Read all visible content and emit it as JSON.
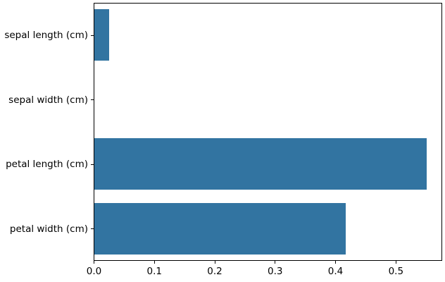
{
  "figure": {
    "background": "#ffffff"
  },
  "chart_data": {
    "type": "bar",
    "orientation": "horizontal",
    "title": "",
    "xlabel": "",
    "ylabel": "",
    "categories": [
      "sepal length (cm)",
      "sepal width (cm)",
      "petal length (cm)",
      "petal width (cm)"
    ],
    "values": [
      0.024,
      0.0,
      0.55,
      0.416
    ],
    "xlim": [
      0.0,
      0.576
    ],
    "xticks": [
      0.0,
      0.1,
      0.2,
      0.3,
      0.4,
      0.5
    ],
    "xtick_labels": [
      "0.0",
      "0.1",
      "0.2",
      "0.3",
      "0.4",
      "0.5"
    ],
    "grid": false,
    "legend": null,
    "bar_color": "#3274a1",
    "axis_color": "#000000",
    "bar_height_fraction": 0.8
  }
}
